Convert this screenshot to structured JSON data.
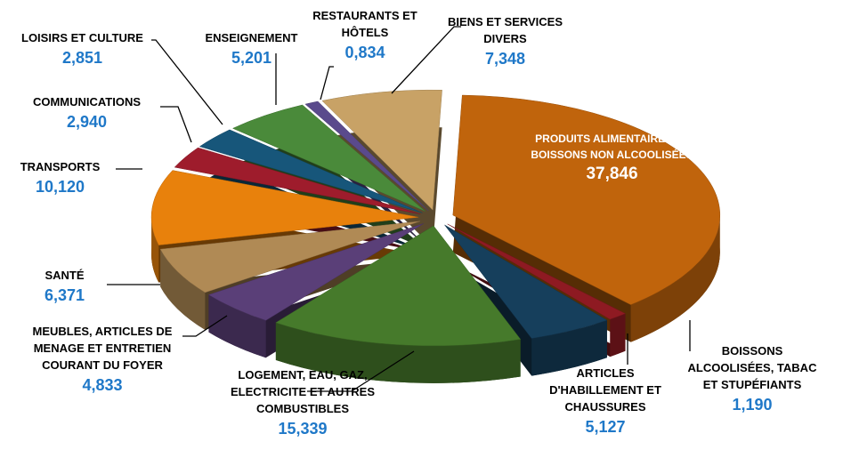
{
  "chart_data": {
    "type": "pie3d",
    "categories": [
      "PRODUITS ALIMENTAIRES ET BOISSONS NON ALCOOLISÉES",
      "BOISSONS ALCOOLISÉES, TABAC ET STUPÉFIANTS",
      "ARTICLES D'HABILLEMENT ET CHAUSSURES",
      "LOGEMENT, EAU, GAZ, ELECTRICITE ET AUTRES COMBUSTIBLES",
      "MEUBLES, ARTICLES DE MENAGE ET ENTRETIEN COURANT DU FOYER",
      "SANTÉ",
      "TRANSPORTS",
      "COMMUNICATIONS",
      "LOISIRS ET CULTURE",
      "ENSEIGNEMENT",
      "RESTAURANTS ET HÔTELS",
      "BIENS ET SERVICES DIVERS"
    ],
    "values": [
      37.846,
      1.19,
      5.127,
      15.339,
      4.833,
      6.371,
      10.12,
      2.94,
      2.851,
      5.201,
      0.834,
      7.348
    ],
    "value_labels": [
      "37,846",
      "1,190",
      "5,127",
      "15,339",
      "4,833",
      "6,371",
      "10,120",
      "2,940",
      "2,851",
      "5,201",
      "0,834",
      "7,348"
    ],
    "colors": [
      "#c0640c",
      "#8e1a22",
      "#163f5c",
      "#467a2b",
      "#5a3f78",
      "#b08a55",
      "#e8810c",
      "#9e1c2c",
      "#17567a",
      "#4a8a3a",
      "#5a4a8c",
      "#c8a266"
    ]
  }
}
